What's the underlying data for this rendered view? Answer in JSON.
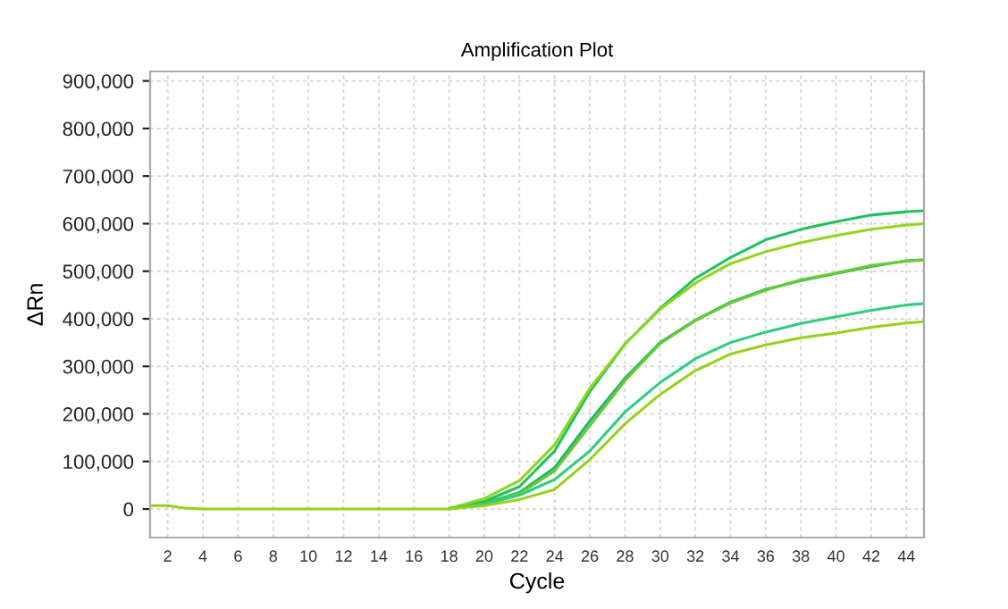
{
  "chart_data": {
    "type": "line",
    "title": "Amplification Plot",
    "xlabel": "Cycle",
    "ylabel": "ΔRn",
    "x": [
      1,
      2,
      3,
      4,
      8,
      12,
      16,
      18,
      20,
      22,
      24,
      26,
      28,
      30,
      32,
      34,
      36,
      38,
      40,
      42,
      44,
      45
    ],
    "series": [
      {
        "color": "#20c060",
        "values": [
          null,
          null,
          null,
          null,
          null,
          null,
          null,
          1000,
          16000,
          47000,
          122000,
          247000,
          347000,
          422000,
          485000,
          529000,
          566000,
          588000,
          604000,
          618000,
          625000,
          627000
        ]
      },
      {
        "color": "#8fd61e",
        "values": [
          null,
          null,
          null,
          null,
          null,
          null,
          null,
          1000,
          22000,
          60000,
          135000,
          254000,
          347000,
          420000,
          475000,
          516000,
          541000,
          560000,
          575000,
          588000,
          597000,
          600000
        ]
      },
      {
        "color": "#1fb86a",
        "values": [
          null,
          null,
          null,
          null,
          null,
          null,
          null,
          1000,
          12000,
          35000,
          87000,
          185000,
          275000,
          350000,
          397000,
          435000,
          462000,
          480000,
          495000,
          510000,
          522000,
          524000
        ]
      },
      {
        "color": "#66cc33",
        "values": [
          null,
          null,
          null,
          null,
          null,
          null,
          null,
          1000,
          11000,
          32000,
          80000,
          175000,
          270000,
          348000,
          396000,
          433000,
          460000,
          482000,
          496000,
          512000,
          521000,
          524000
        ]
      },
      {
        "color": "#2ccf7f",
        "values": [
          null,
          null,
          null,
          null,
          null,
          null,
          null,
          0,
          10000,
          29000,
          62000,
          122000,
          204000,
          266000,
          316000,
          350000,
          372000,
          390000,
          404000,
          418000,
          429000,
          432000
        ]
      },
      {
        "color": "#9ad01a",
        "values": [
          7000,
          7000,
          2000,
          0,
          0,
          0,
          0,
          0,
          7000,
          20000,
          41000,
          104000,
          179000,
          241000,
          291000,
          326000,
          345000,
          360000,
          370000,
          382000,
          391000,
          394000
        ]
      }
    ],
    "xlim": [
      1,
      45
    ],
    "xticks": [
      2,
      4,
      6,
      8,
      10,
      12,
      14,
      16,
      18,
      20,
      22,
      24,
      26,
      28,
      30,
      32,
      34,
      36,
      38,
      40,
      42,
      44
    ],
    "ylim": [
      -60000,
      920000
    ],
    "yticks": [
      {
        "value": 0,
        "label": "0"
      },
      {
        "value": 100000,
        "label": "100,000"
      },
      {
        "value": 200000,
        "label": "200,000"
      },
      {
        "value": 300000,
        "label": "300,000"
      },
      {
        "value": 400000,
        "label": "400,000"
      },
      {
        "value": 500000,
        "label": "500,000"
      },
      {
        "value": 600000,
        "label": "600,000"
      },
      {
        "value": 700000,
        "label": "700,000"
      },
      {
        "value": 800000,
        "label": "800,000"
      },
      {
        "value": 900000,
        "label": "900,000"
      }
    ],
    "grid": true,
    "line_style": "solid",
    "marker": "none"
  }
}
